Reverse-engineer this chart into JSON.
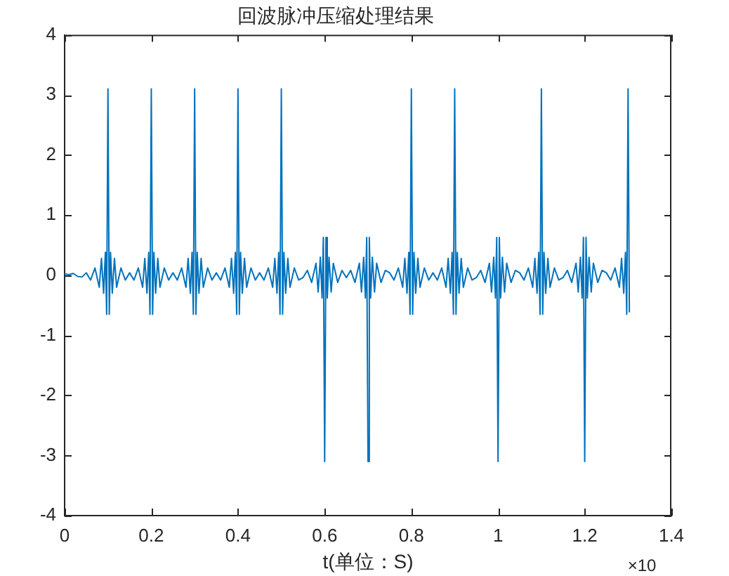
{
  "chart_data": {
    "type": "line",
    "title": "回波脉冲压缩处理结果",
    "xlabel": "t(单位：S)",
    "annotations": [
      "×10"
    ],
    "x": [
      0,
      0.01,
      0.02,
      0.03,
      0.04,
      0.05,
      0.06,
      0.07,
      0.08,
      0.085,
      0.09,
      0.094,
      0.097,
      0.1,
      0.103,
      0.106,
      0.11,
      0.115,
      0.12,
      0.13,
      0.14,
      0.15,
      0.16,
      0.17,
      0.18,
      0.185,
      0.19,
      0.194,
      0.197,
      0.2,
      0.203,
      0.206,
      0.21,
      0.215,
      0.22,
      0.23,
      0.24,
      0.25,
      0.26,
      0.27,
      0.28,
      0.285,
      0.29,
      0.294,
      0.297,
      0.3,
      0.303,
      0.306,
      0.31,
      0.315,
      0.32,
      0.33,
      0.34,
      0.35,
      0.36,
      0.37,
      0.38,
      0.385,
      0.39,
      0.394,
      0.397,
      0.4,
      0.403,
      0.406,
      0.41,
      0.415,
      0.42,
      0.43,
      0.44,
      0.45,
      0.46,
      0.47,
      0.48,
      0.485,
      0.49,
      0.494,
      0.497,
      0.5,
      0.503,
      0.506,
      0.51,
      0.515,
      0.52,
      0.53,
      0.54,
      0.55,
      0.56,
      0.57,
      0.58,
      0.585,
      0.59,
      0.594,
      0.597,
      0.6,
      0.603,
      0.606,
      0.61,
      0.615,
      0.62,
      0.63,
      0.64,
      0.65,
      0.66,
      0.67,
      0.68,
      0.685,
      0.69,
      0.694,
      0.697,
      0.7,
      0.703,
      0.706,
      0.71,
      0.715,
      0.72,
      0.73,
      0.74,
      0.75,
      0.76,
      0.77,
      0.78,
      0.785,
      0.79,
      0.794,
      0.797,
      0.8,
      0.803,
      0.806,
      0.81,
      0.815,
      0.82,
      0.83,
      0.84,
      0.85,
      0.86,
      0.87,
      0.88,
      0.885,
      0.89,
      0.894,
      0.897,
      0.9,
      0.903,
      0.906,
      0.91,
      0.915,
      0.92,
      0.93,
      0.94,
      0.95,
      0.96,
      0.97,
      0.98,
      0.985,
      0.99,
      0.994,
      0.997,
      1.0,
      1.003,
      1.006,
      1.01,
      1.015,
      1.02,
      1.03,
      1.04,
      1.05,
      1.06,
      1.07,
      1.08,
      1.085,
      1.09,
      1.094,
      1.097,
      1.1,
      1.103,
      1.106,
      1.11,
      1.115,
      1.12,
      1.13,
      1.14,
      1.15,
      1.16,
      1.17,
      1.18,
      1.185,
      1.19,
      1.194,
      1.197,
      1.2,
      1.203,
      1.206,
      1.21,
      1.215,
      1.22,
      1.23,
      1.24,
      1.25,
      1.26,
      1.27,
      1.28,
      1.285,
      1.29,
      1.294,
      1.297,
      1.3,
      1.303
    ],
    "series": [
      {
        "color": "#0072bd",
        "values": [
          0.02,
          0.01,
          0.03,
          -0.02,
          -0.03,
          0.04,
          -0.08,
          0.12,
          -0.2,
          0.28,
          -0.3,
          0.38,
          -0.65,
          3.1,
          -0.65,
          0.38,
          -0.3,
          0.28,
          -0.2,
          0.12,
          -0.08,
          0.04,
          -0.08,
          0.12,
          -0.2,
          0.28,
          -0.3,
          0.38,
          -0.65,
          3.1,
          -0.65,
          0.38,
          -0.3,
          0.28,
          -0.2,
          0.12,
          -0.08,
          0.04,
          -0.08,
          0.12,
          -0.2,
          0.28,
          -0.3,
          0.38,
          -0.65,
          3.1,
          -0.65,
          0.38,
          -0.3,
          0.28,
          -0.2,
          0.12,
          -0.08,
          0.04,
          -0.08,
          0.12,
          -0.2,
          0.28,
          -0.3,
          0.38,
          -0.65,
          3.1,
          -0.65,
          0.38,
          -0.3,
          0.28,
          -0.2,
          0.12,
          -0.08,
          0.04,
          -0.08,
          0.12,
          -0.2,
          0.28,
          -0.3,
          0.38,
          -0.65,
          3.1,
          -0.65,
          0.38,
          -0.3,
          0.28,
          -0.2,
          0.12,
          -0.08,
          -0.04,
          0.08,
          -0.12,
          0.2,
          -0.28,
          0.3,
          -0.38,
          0.63,
          -3.1,
          0.63,
          -0.38,
          0.3,
          -0.28,
          0.2,
          -0.12,
          0.08,
          -0.04,
          0.08,
          -0.12,
          0.2,
          -0.28,
          0.3,
          -0.38,
          0.63,
          -3.1,
          0.63,
          -0.38,
          0.3,
          -0.28,
          0.2,
          -0.12,
          0.08,
          0.04,
          -0.08,
          0.12,
          -0.2,
          0.28,
          -0.3,
          0.38,
          -0.65,
          3.1,
          -0.65,
          0.38,
          -0.3,
          0.28,
          -0.2,
          0.12,
          -0.08,
          0.04,
          -0.08,
          0.12,
          -0.2,
          0.28,
          -0.3,
          0.38,
          -0.65,
          3.1,
          -0.65,
          0.38,
          -0.3,
          0.28,
          -0.2,
          0.12,
          -0.08,
          -0.04,
          0.08,
          -0.12,
          0.2,
          -0.28,
          0.3,
          -0.38,
          0.63,
          -3.1,
          0.63,
          -0.38,
          0.3,
          -0.28,
          0.2,
          -0.12,
          0.08,
          0.04,
          -0.08,
          0.12,
          -0.2,
          0.28,
          -0.3,
          0.38,
          -0.65,
          3.1,
          -0.65,
          0.38,
          -0.3,
          0.28,
          -0.2,
          0.12,
          -0.08,
          -0.04,
          0.08,
          -0.12,
          0.2,
          -0.28,
          0.3,
          -0.38,
          0.63,
          -3.1,
          0.63,
          -0.38,
          0.3,
          -0.28,
          0.2,
          -0.12,
          0.08,
          0.04,
          -0.08,
          0.12,
          -0.2,
          0.28,
          -0.3,
          0.38,
          -0.65,
          3.1,
          -0.62
        ]
      }
    ],
    "xlim": [
      0,
      1.4
    ],
    "xticks": [
      0,
      0.2,
      0.4,
      0.6,
      0.8,
      1,
      1.2,
      1.4
    ],
    "ylim": [
      -4,
      4
    ],
    "yticks": [
      -4,
      -3,
      -2,
      -1,
      0,
      1,
      2,
      3,
      4
    ],
    "grid": false,
    "legend": false,
    "marker": "none",
    "line_style": "solid"
  }
}
